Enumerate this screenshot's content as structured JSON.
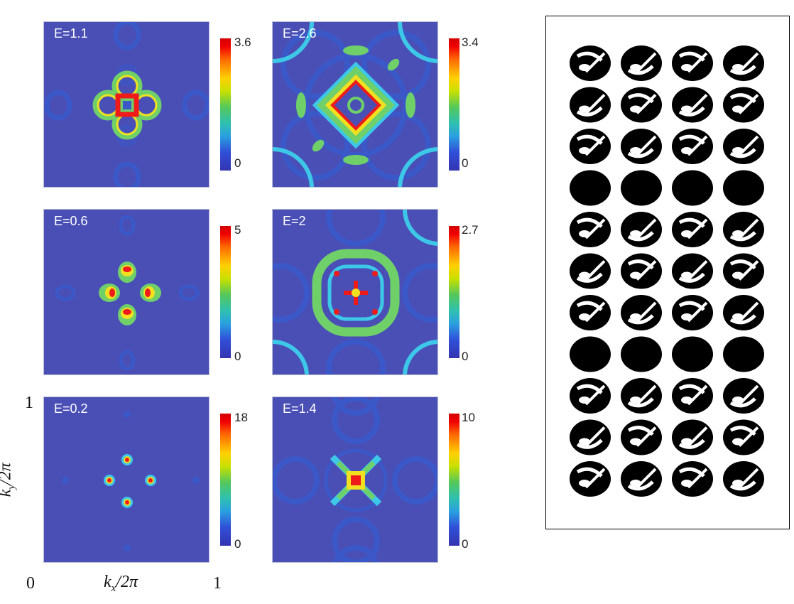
{
  "panels": [
    {
      "energy_label": "E=1.1",
      "cbar_max": "3.6",
      "cbar_min": "0"
    },
    {
      "energy_label": "E=2.6",
      "cbar_max": "3.4",
      "cbar_min": "0"
    },
    {
      "energy_label": "E=0.6",
      "cbar_max": "5",
      "cbar_min": "0"
    },
    {
      "energy_label": "E=2",
      "cbar_max": "2.7",
      "cbar_min": "0"
    },
    {
      "energy_label": "E=0.2",
      "cbar_max": "18",
      "cbar_min": "0"
    },
    {
      "energy_label": "E=1.4",
      "cbar_max": "10",
      "cbar_min": "0"
    }
  ],
  "axes": {
    "origin": "0",
    "x_max": "1",
    "y_max": "1",
    "xlabel": "k",
    "xlabel_sub": "x",
    "xlabel_tail": "/2π",
    "ylabel": "k",
    "ylabel_sub": "y",
    "ylabel_tail": "/2π"
  },
  "colors": {
    "background_level": "#4a4fb6",
    "outline": "#3b58c8",
    "green": "#6fd06a",
    "yellow": "#f0e020",
    "red": "#ef1b1b",
    "cyan": "#3ec8e8",
    "glyph": "#000000"
  },
  "glyph_grid": {
    "rows": [
      "striped",
      "striped",
      "striped",
      "dot",
      "striped",
      "striped",
      "striped",
      "dot",
      "striped",
      "striped",
      "striped"
    ],
    "columns": 4
  }
}
